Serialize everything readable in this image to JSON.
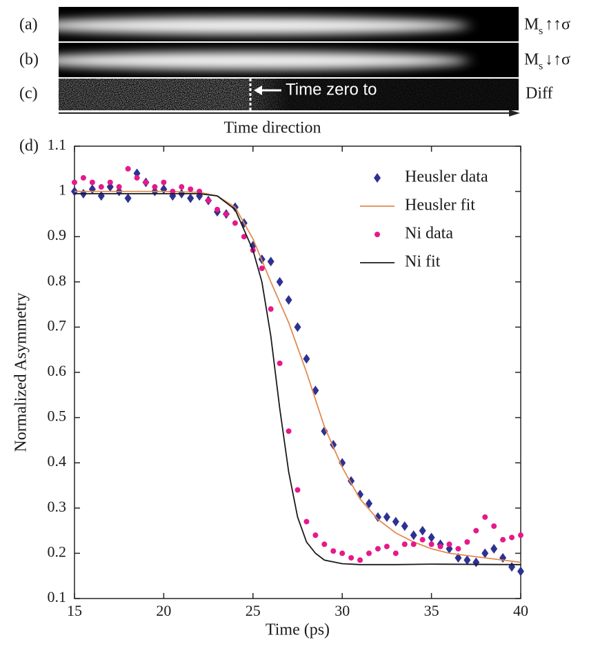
{
  "figure_panels": [
    {
      "label": "(a)",
      "main": "M",
      "sub": "s",
      "rest": "↑↑σ"
    },
    {
      "label": "(b)",
      "main": "M",
      "sub": "s",
      "rest": "↓↑σ"
    },
    {
      "label": "(c)",
      "main": "Diff"
    }
  ],
  "time_zero_label": "Time zero to",
  "time_direction_label": "Time direction",
  "chart_data": {
    "type": "scatter",
    "panel_label": "(d)",
    "x_label": "Time (ps)",
    "y_label": "Normalized Asymmetry",
    "xlim": [
      15,
      40
    ],
    "xticks": [
      15,
      20,
      25,
      30,
      35,
      40
    ],
    "ylim": [
      0.1,
      1.1
    ],
    "yticks": [
      0.1,
      0.2,
      0.3,
      0.4,
      0.5,
      0.6,
      0.7,
      0.8,
      0.9,
      1,
      1.1
    ],
    "legend": "upper right",
    "series": [
      {
        "name": "Heusler data",
        "color": "#2e3192",
        "style": "diamond",
        "x": [
          15,
          15.5,
          16,
          16.5,
          17,
          17.5,
          18,
          18.5,
          19,
          19.5,
          20,
          20.5,
          21,
          21.5,
          22,
          22.5,
          23,
          23.5,
          24,
          24.5,
          25,
          25.5,
          26,
          26.5,
          27,
          27.5,
          28,
          28.5,
          29,
          29.5,
          30,
          30.5,
          31,
          31.5,
          32,
          32.5,
          33,
          33.5,
          34,
          34.5,
          35,
          35.5,
          36,
          36.5,
          37,
          37.5,
          38,
          38.5,
          39,
          39.5,
          40
        ],
        "values": [
          1.0,
          0.995,
          1.005,
          0.99,
          1.01,
          1.0,
          0.985,
          1.04,
          1.02,
          1.0,
          1.005,
          0.99,
          0.995,
          0.985,
          0.99,
          0.98,
          0.955,
          0.95,
          0.965,
          0.93,
          0.88,
          0.85,
          0.845,
          0.8,
          0.76,
          0.7,
          0.63,
          0.56,
          0.47,
          0.44,
          0.4,
          0.36,
          0.33,
          0.31,
          0.28,
          0.28,
          0.27,
          0.26,
          0.24,
          0.25,
          0.235,
          0.22,
          0.21,
          0.19,
          0.185,
          0.18,
          0.2,
          0.21,
          0.19,
          0.17,
          0.16
        ]
      },
      {
        "name": "Heusler fit",
        "color": "#e08a50",
        "style": "line",
        "x": [
          15,
          20,
          22,
          23,
          24,
          25,
          26,
          27,
          28,
          29,
          30,
          31,
          32,
          33,
          34,
          35,
          36,
          38,
          40
        ],
        "values": [
          1.0,
          1.0,
          0.998,
          0.99,
          0.965,
          0.895,
          0.8,
          0.71,
          0.6,
          0.48,
          0.39,
          0.32,
          0.275,
          0.245,
          0.225,
          0.21,
          0.2,
          0.19,
          0.18
        ]
      },
      {
        "name": "Ni data",
        "color": "#e6198a",
        "style": "circle",
        "x": [
          15,
          15.5,
          16,
          16.5,
          17,
          17.5,
          18,
          18.5,
          19,
          19.5,
          20,
          20.5,
          21,
          21.5,
          22,
          22.5,
          23,
          23.5,
          24,
          24.5,
          25,
          25.5,
          26,
          26.5,
          27,
          27.5,
          28,
          28.5,
          29,
          29.5,
          30,
          30.5,
          31,
          31.5,
          32,
          32.5,
          33,
          33.5,
          34,
          34.5,
          35,
          35.5,
          36,
          36.5,
          37,
          37.5,
          38,
          38.5,
          39,
          39.5,
          40
        ],
        "values": [
          1.02,
          1.03,
          1.02,
          1.01,
          1.02,
          1.01,
          1.05,
          1.03,
          1.02,
          1.01,
          1.02,
          1.0,
          1.01,
          1.005,
          1.0,
          0.98,
          0.96,
          0.95,
          0.93,
          0.9,
          0.87,
          0.83,
          0.74,
          0.62,
          0.47,
          0.34,
          0.27,
          0.24,
          0.22,
          0.205,
          0.2,
          0.19,
          0.185,
          0.2,
          0.21,
          0.215,
          0.2,
          0.22,
          0.22,
          0.23,
          0.22,
          0.215,
          0.22,
          0.21,
          0.225,
          0.25,
          0.28,
          0.26,
          0.23,
          0.235,
          0.24
        ]
      },
      {
        "name": "Ni fit",
        "color": "#1a1a1a",
        "style": "line",
        "x": [
          15,
          20,
          22,
          23,
          24,
          25,
          25.5,
          26,
          26.5,
          27,
          27.5,
          28,
          28.5,
          29,
          30,
          31,
          33,
          35,
          40
        ],
        "values": [
          0.995,
          0.995,
          0.995,
          0.99,
          0.96,
          0.87,
          0.8,
          0.68,
          0.52,
          0.38,
          0.28,
          0.225,
          0.2,
          0.185,
          0.177,
          0.175,
          0.175,
          0.176,
          0.175
        ]
      }
    ]
  }
}
